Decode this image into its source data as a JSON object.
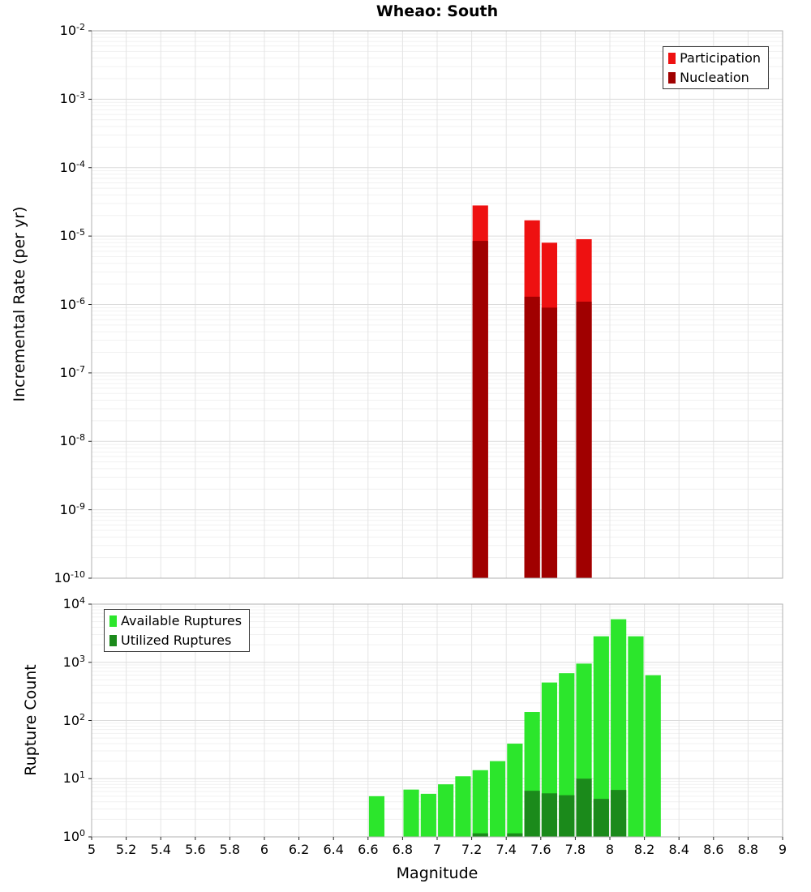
{
  "chart_data": [
    {
      "type": "bar",
      "title": "Wheao: South",
      "ylabel": "Incremental Rate (per yr)",
      "yscale": "log",
      "ylim": [
        1e-10,
        0.01
      ],
      "xlim": [
        5,
        9
      ],
      "x_tick_step": 0.2,
      "show_x_tick_labels": false,
      "grid": true,
      "legend_position": "top-right",
      "bar_width": 0.09,
      "series": [
        {
          "name": "Participation",
          "color": "#ee1111",
          "data": [
            [
              7.25,
              2.8e-05
            ],
            [
              7.55,
              1.7e-05
            ],
            [
              7.65,
              8e-06
            ],
            [
              7.85,
              9e-06
            ]
          ]
        },
        {
          "name": "Nucleation",
          "color": "#a00000",
          "data": [
            [
              7.25,
              8.5e-06
            ],
            [
              7.55,
              1.3e-06
            ],
            [
              7.65,
              9e-07
            ],
            [
              7.85,
              1.1e-06
            ]
          ]
        }
      ]
    },
    {
      "type": "bar",
      "title": "",
      "ylabel": "Rupture Count",
      "xlabel": "Magnitude",
      "yscale": "log",
      "ylim": [
        1,
        10000
      ],
      "xlim": [
        5,
        9
      ],
      "x_tick_step": 0.2,
      "show_x_tick_labels": true,
      "grid": true,
      "legend_position": "top-left",
      "bar_width": 0.09,
      "series": [
        {
          "name": "Available Ruptures",
          "color": "#2ce62c",
          "data": [
            [
              6.65,
              5
            ],
            [
              6.85,
              6.5
            ],
            [
              6.95,
              5.5
            ],
            [
              7.05,
              8
            ],
            [
              7.15,
              11
            ],
            [
              7.25,
              14
            ],
            [
              7.35,
              20
            ],
            [
              7.45,
              40
            ],
            [
              7.55,
              140
            ],
            [
              7.65,
              450
            ],
            [
              7.75,
              650
            ],
            [
              7.85,
              950
            ],
            [
              7.95,
              2800
            ],
            [
              8.05,
              5500
            ],
            [
              8.15,
              2800
            ],
            [
              8.25,
              600
            ]
          ]
        },
        {
          "name": "Utilized Ruptures",
          "color": "#1b8a1b",
          "data": [
            [
              7.25,
              1.15
            ],
            [
              7.45,
              1.15
            ],
            [
              7.55,
              6.2
            ],
            [
              7.65,
              5.6
            ],
            [
              7.75,
              5.2
            ],
            [
              7.85,
              10
            ],
            [
              7.95,
              4.5
            ],
            [
              8.05,
              6.4
            ]
          ]
        }
      ]
    }
  ]
}
